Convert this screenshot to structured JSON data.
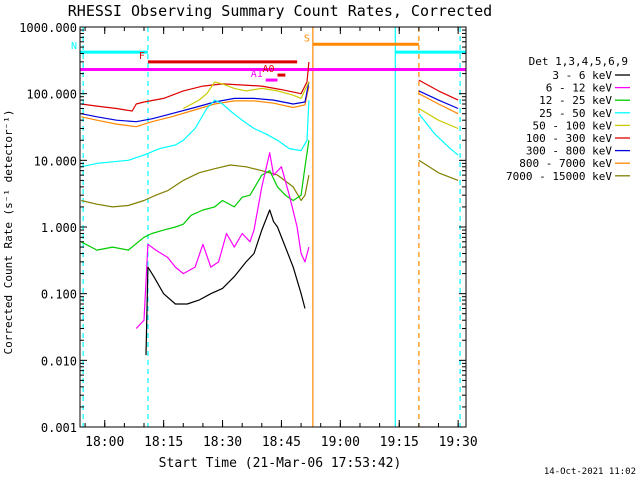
{
  "chart_data": {
    "type": "line",
    "title": "RHESSI Observing Summary Count Rates, Corrected",
    "xlabel": "Start Time (21-Mar-06 17:53:42)",
    "ylabel": "Corrected Count Rate (s⁻¹ detector⁻¹)",
    "date_stamp": "14-Oct-2021 11:02",
    "y_scale": "log",
    "ylim": [
      0.001,
      1000
    ],
    "xlim": [
      "17:53:42",
      "19:32:00"
    ],
    "x_ticks": [
      "18:00",
      "18:15",
      "18:30",
      "18:45",
      "19:00",
      "19:15",
      "19:30"
    ],
    "y_ticks": [
      "0.001",
      "0.010",
      "0.100",
      "1.000",
      "10.000",
      "100.000",
      "1000.000"
    ],
    "grid": false,
    "legend_position": "right",
    "legend_title": "Det 1,3,4,5,6,9",
    "series": [
      {
        "name": "3 - 6 keV",
        "color": "#000000",
        "points": [
          [
            "18:10:30",
            0.012
          ],
          [
            "18:11:00",
            0.25
          ],
          [
            "18:12:30",
            0.18
          ],
          [
            "18:15:00",
            0.1
          ],
          [
            "18:18:00",
            0.07
          ],
          [
            "18:21:00",
            0.07
          ],
          [
            "18:24:00",
            0.08
          ],
          [
            "18:27:00",
            0.1
          ],
          [
            "18:30:00",
            0.12
          ],
          [
            "18:33:00",
            0.18
          ],
          [
            "18:36:00",
            0.3
          ],
          [
            "18:38:00",
            0.4
          ],
          [
            "18:40:00",
            0.9
          ],
          [
            "18:42:00",
            1.8
          ],
          [
            "18:43:00",
            1.2
          ],
          [
            "18:44:00",
            1.0
          ],
          [
            "18:46:00",
            0.5
          ],
          [
            "18:48:00",
            0.25
          ],
          [
            "18:50:00",
            0.1
          ],
          [
            "18:51:00",
            0.06
          ]
        ]
      },
      {
        "name": "6 - 12 keV",
        "color": "#ff00ff",
        "points": [
          [
            "18:08:00",
            0.03
          ],
          [
            "18:10:00",
            0.04
          ],
          [
            "18:11:00",
            0.55
          ],
          [
            "18:13:00",
            0.45
          ],
          [
            "18:16:00",
            0.35
          ],
          [
            "18:18:00",
            0.25
          ],
          [
            "18:20:00",
            0.2
          ],
          [
            "18:23:00",
            0.25
          ],
          [
            "18:25:00",
            0.55
          ],
          [
            "18:27:00",
            0.25
          ],
          [
            "18:29:00",
            0.3
          ],
          [
            "18:31:00",
            0.8
          ],
          [
            "18:33:00",
            0.5
          ],
          [
            "18:35:00",
            0.8
          ],
          [
            "18:37:00",
            0.6
          ],
          [
            "18:38:00",
            0.9
          ],
          [
            "18:40:00",
            4.0
          ],
          [
            "18:42:00",
            13.0
          ],
          [
            "18:43:00",
            6.0
          ],
          [
            "18:45:00",
            8.0
          ],
          [
            "18:47:00",
            3.0
          ],
          [
            "18:49:00",
            1.0
          ],
          [
            "18:50:00",
            0.4
          ],
          [
            "18:51:00",
            0.3
          ],
          [
            "18:52:00",
            0.5
          ]
        ]
      },
      {
        "name": "12 - 25 keV",
        "color": "#00cc00",
        "points": [
          [
            "17:54:00",
            0.6
          ],
          [
            "17:58:00",
            0.45
          ],
          [
            "18:02:00",
            0.5
          ],
          [
            "18:06:00",
            0.45
          ],
          [
            "18:10:00",
            0.7
          ],
          [
            "18:12:00",
            0.8
          ],
          [
            "18:15:00",
            0.9
          ],
          [
            "18:18:00",
            1.0
          ],
          [
            "18:20:00",
            1.1
          ],
          [
            "18:22:00",
            1.5
          ],
          [
            "18:25:00",
            1.8
          ],
          [
            "18:28:00",
            2.0
          ],
          [
            "18:30:00",
            2.5
          ],
          [
            "18:33:00",
            2.0
          ],
          [
            "18:35:00",
            2.8
          ],
          [
            "18:37:00",
            3.0
          ],
          [
            "18:40:00",
            6.0
          ],
          [
            "18:42:00",
            7.0
          ],
          [
            "18:44:00",
            4.0
          ],
          [
            "18:46:00",
            3.0
          ],
          [
            "18:48:00",
            2.5
          ],
          [
            "18:50:00",
            3.0
          ],
          [
            "18:51:00",
            8.0
          ],
          [
            "18:52:00",
            20.0
          ]
        ]
      },
      {
        "name": "25 - 50 keV",
        "color": "#00ffff",
        "points": [
          [
            "17:54:00",
            8.0
          ],
          [
            "17:58:00",
            9.0
          ],
          [
            "18:02:00",
            9.5
          ],
          [
            "18:06:00",
            10.0
          ],
          [
            "18:10:00",
            12.0
          ],
          [
            "18:14:00",
            15.0
          ],
          [
            "18:18:00",
            17.0
          ],
          [
            "18:20:00",
            20.0
          ],
          [
            "18:23:00",
            30.0
          ],
          [
            "18:26:00",
            60.0
          ],
          [
            "18:28:00",
            80.0
          ],
          [
            "18:30:00",
            70.0
          ],
          [
            "18:32:00",
            55.0
          ],
          [
            "18:35:00",
            40.0
          ],
          [
            "18:38:00",
            30.0
          ],
          [
            "18:41:00",
            25.0
          ],
          [
            "18:44:00",
            20.0
          ],
          [
            "18:47:00",
            15.0
          ],
          [
            "18:50:00",
            14.0
          ],
          [
            "18:51:30",
            20.0
          ],
          [
            "18:52:00",
            80.0
          ],
          [
            "19:20:00",
            50.0
          ],
          [
            "19:24:00",
            25.0
          ],
          [
            "19:28:00",
            15.0
          ],
          [
            "19:30:00",
            12.0
          ]
        ]
      },
      {
        "name": "50 - 100 keV",
        "color": "#cccc00",
        "points": [
          [
            "18:20:00",
            60.0
          ],
          [
            "18:24:00",
            80.0
          ],
          [
            "18:26:00",
            100.0
          ],
          [
            "18:28:00",
            150.0
          ],
          [
            "18:30:00",
            140.0
          ],
          [
            "18:33:00",
            120.0
          ],
          [
            "18:36:00",
            110.0
          ],
          [
            "18:40:00",
            120.0
          ],
          [
            "18:44:00",
            110.0
          ],
          [
            "18:48:00",
            95.0
          ],
          [
            "18:50:00",
            85.0
          ],
          [
            "18:52:00",
            150.0
          ],
          [
            "19:20:00",
            60.0
          ],
          [
            "19:25:00",
            40.0
          ],
          [
            "19:30:00",
            30.0
          ]
        ]
      },
      {
        "name": "100 - 300 keV",
        "color": "#dd0000",
        "points": [
          [
            "17:54:00",
            70.0
          ],
          [
            "17:58:00",
            65.0
          ],
          [
            "18:03:00",
            60.0
          ],
          [
            "18:07:00",
            55.0
          ],
          [
            "18:08:00",
            70.0
          ],
          [
            "18:10:00",
            75.0
          ],
          [
            "18:15:00",
            85.0
          ],
          [
            "18:20:00",
            110.0
          ],
          [
            "18:25:00",
            130.0
          ],
          [
            "18:30:00",
            140.0
          ],
          [
            "18:35:00",
            135.0
          ],
          [
            "18:40:00",
            130.0
          ],
          [
            "18:45:00",
            115.0
          ],
          [
            "18:50:00",
            100.0
          ],
          [
            "18:51:30",
            150.0
          ],
          [
            "18:52:00",
            300.0
          ],
          [
            "19:20:00",
            160.0
          ],
          [
            "19:25:00",
            110.0
          ],
          [
            "19:30:00",
            80.0
          ]
        ]
      },
      {
        "name": "300 - 800 keV",
        "color": "#0000dd",
        "points": [
          [
            "17:54:00",
            50.0
          ],
          [
            "17:58:00",
            45.0
          ],
          [
            "18:03:00",
            40.0
          ],
          [
            "18:08:00",
            38.0
          ],
          [
            "18:12:00",
            42.0
          ],
          [
            "18:17:00",
            50.0
          ],
          [
            "18:22:00",
            60.0
          ],
          [
            "18:28:00",
            75.0
          ],
          [
            "18:33:00",
            85.0
          ],
          [
            "18:38:00",
            85.0
          ],
          [
            "18:43:00",
            80.0
          ],
          [
            "18:48:00",
            70.0
          ],
          [
            "18:51:00",
            75.0
          ],
          [
            "18:52:00",
            150.0
          ],
          [
            "19:20:00",
            110.0
          ],
          [
            "19:25:00",
            80.0
          ],
          [
            "19:30:00",
            60.0
          ]
        ]
      },
      {
        "name": "800 - 7000 keV",
        "color": "#ff8800",
        "points": [
          [
            "17:54:00",
            45.0
          ],
          [
            "17:58:00",
            40.0
          ],
          [
            "18:03:00",
            35.0
          ],
          [
            "18:08:00",
            32.0
          ],
          [
            "18:12:00",
            38.0
          ],
          [
            "18:17:00",
            45.0
          ],
          [
            "18:22:00",
            55.0
          ],
          [
            "18:28:00",
            70.0
          ],
          [
            "18:33:00",
            78.0
          ],
          [
            "18:38:00",
            78.0
          ],
          [
            "18:43:00",
            72.0
          ],
          [
            "18:48:00",
            62.0
          ],
          [
            "18:51:00",
            68.0
          ],
          [
            "18:52:00",
            130.0
          ],
          [
            "19:20:00",
            100.0
          ],
          [
            "19:25:00",
            70.0
          ],
          [
            "19:30:00",
            50.0
          ]
        ]
      },
      {
        "name": "7000 - 15000 keV",
        "color": "#808000",
        "points": [
          [
            "17:54:00",
            2.5
          ],
          [
            "17:58:00",
            2.2
          ],
          [
            "18:02:00",
            2.0
          ],
          [
            "18:06:00",
            2.1
          ],
          [
            "18:10:00",
            2.5
          ],
          [
            "18:13:00",
            3.0
          ],
          [
            "18:16:00",
            3.5
          ],
          [
            "18:20:00",
            5.0
          ],
          [
            "18:24:00",
            6.5
          ],
          [
            "18:28:00",
            7.5
          ],
          [
            "18:32:00",
            8.5
          ],
          [
            "18:36:00",
            8.0
          ],
          [
            "18:40:00",
            7.0
          ],
          [
            "18:44:00",
            6.0
          ],
          [
            "18:48:00",
            4.0
          ],
          [
            "18:50:00",
            2.5
          ],
          [
            "18:51:00",
            3.0
          ],
          [
            "18:52:00",
            6.0
          ],
          [
            "19:20:00",
            10.0
          ],
          [
            "19:25:00",
            6.5
          ],
          [
            "19:30:00",
            5.0
          ]
        ]
      }
    ],
    "flag_bars": [
      {
        "label": "N",
        "color": "#00ffff",
        "y": 420,
        "spans": [
          [
            "17:53:42",
            "18:11:00"
          ],
          [
            "19:14:00",
            "19:32:00"
          ]
        ]
      },
      {
        "label": "F",
        "color": "#dd0000",
        "y": 300,
        "spans": [
          [
            "18:11:00",
            "18:49:00"
          ]
        ]
      },
      {
        "label": "S",
        "color": "#ff8800",
        "y": 550,
        "spans": [
          [
            "18:53:00",
            "19:20:00"
          ]
        ]
      },
      {
        "label": "",
        "color": "#ff00ff",
        "y": 230,
        "spans": [
          [
            "17:53:42",
            "19:32:00"
          ]
        ]
      },
      {
        "label": "A1",
        "color": "#ff00ff",
        "y": 160,
        "spans": [
          [
            "18:41:00",
            "18:44:00"
          ]
        ]
      },
      {
        "label": "A0",
        "color": "#dd0000",
        "y": 190,
        "spans": [
          [
            "18:44:00",
            "18:46:00"
          ]
        ]
      }
    ],
    "vertical_markers": [
      {
        "x": "17:54:30",
        "color": "#00ffff",
        "style": "dashed"
      },
      {
        "x": "18:11:00",
        "color": "#00ffff",
        "style": "dashed"
      },
      {
        "x": "18:53:00",
        "color": "#ff8800",
        "style": "solid"
      },
      {
        "x": "19:14:00",
        "color": "#00ffff",
        "style": "solid"
      },
      {
        "x": "19:20:00",
        "color": "#ff8800",
        "style": "dashed"
      },
      {
        "x": "19:30:30",
        "color": "#00ffff",
        "style": "dashed"
      }
    ]
  }
}
